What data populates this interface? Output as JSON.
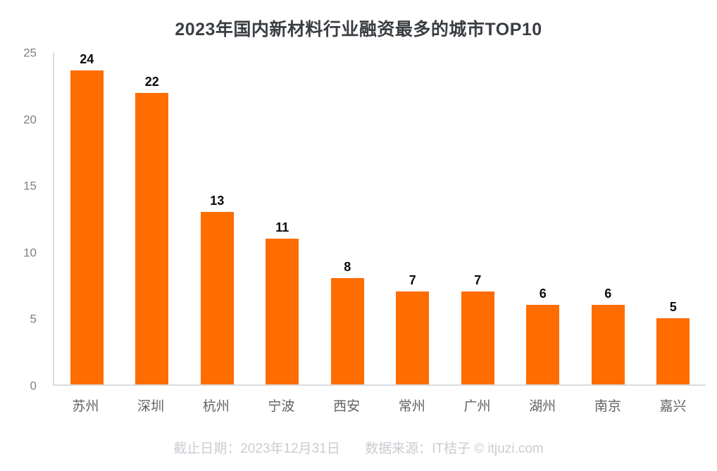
{
  "title": "2023年国内新材料行业融资最多的城市TOP10",
  "footer": {
    "date_label": "截止日期：2023年12月31日",
    "source_label": "数据来源：IT桔子 © itjuzi.com"
  },
  "colors": {
    "bar": "#FF6C00",
    "title_text": "#3A3E43",
    "axis_line": "#D9DBDF",
    "tick_text": "#7D8189",
    "category_text": "#606266",
    "value_text": "#0A0A0A",
    "footer_text": "#C9CCD1"
  },
  "chart_data": {
    "type": "bar",
    "title": "2023年国内新材料行业融资最多的城市TOP10",
    "categories": [
      "苏州",
      "深圳",
      "杭州",
      "宁波",
      "西安",
      "常州",
      "广州",
      "湖州",
      "南京",
      "嘉兴"
    ],
    "values": [
      24,
      22,
      13,
      11,
      8,
      7,
      7,
      6,
      6,
      5
    ],
    "xlabel": "",
    "ylabel": "",
    "ylim": [
      0,
      25
    ],
    "yticks": [
      0,
      5,
      10,
      15,
      20,
      25
    ],
    "grid": false,
    "legend": false,
    "data_labels_shown": true,
    "bar_color": "#FF6C00"
  }
}
